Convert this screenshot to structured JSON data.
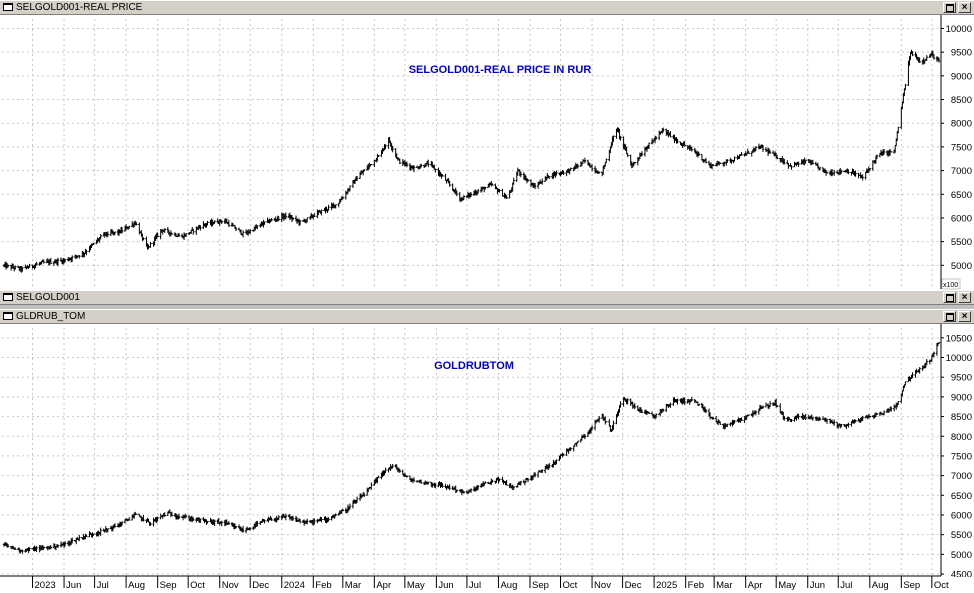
{
  "windows": [
    {
      "title": "SELGOLD001-REAL PRICE"
    },
    {
      "title": "SELGOLD001"
    },
    {
      "title": "GLDRUB_TOM"
    }
  ],
  "buttons": {
    "close": "×"
  },
  "chart_data": [
    {
      "type": "ohlc",
      "title": "SELGOLD001-REAL PRICE IN RUR",
      "title_color": "#0000cc",
      "ylim": [
        4500,
        10200
      ],
      "yticks": [
        10000,
        9500,
        9000,
        8500,
        8000,
        7500,
        7000,
        6500,
        6000,
        5500,
        5000
      ],
      "scale_label": "x100",
      "grid": true,
      "x_start": "2023-04-01",
      "x_end": "2025-10-10",
      "series_points": [
        [
          "2023-04-01",
          5000
        ],
        [
          "2023-04-20",
          4920
        ],
        [
          "2023-05-10",
          5050
        ],
        [
          "2023-06-01",
          5100
        ],
        [
          "2023-06-20",
          5250
        ],
        [
          "2023-07-10",
          5650
        ],
        [
          "2023-07-25",
          5700
        ],
        [
          "2023-08-10",
          5900
        ],
        [
          "2023-08-22",
          5350
        ],
        [
          "2023-09-05",
          5750
        ],
        [
          "2023-09-25",
          5600
        ],
        [
          "2023-10-15",
          5850
        ],
        [
          "2023-11-05",
          5950
        ],
        [
          "2023-11-25",
          5650
        ],
        [
          "2023-12-15",
          5900
        ],
        [
          "2024-01-05",
          6050
        ],
        [
          "2024-01-20",
          5900
        ],
        [
          "2024-02-05",
          6100
        ],
        [
          "2024-02-25",
          6300
        ],
        [
          "2024-03-15",
          6850
        ],
        [
          "2024-04-05",
          7300
        ],
        [
          "2024-04-15",
          7650
        ],
        [
          "2024-04-25",
          7200
        ],
        [
          "2024-05-10",
          7050
        ],
        [
          "2024-05-25",
          7150
        ],
        [
          "2024-06-10",
          6800
        ],
        [
          "2024-06-25",
          6400
        ],
        [
          "2024-07-10",
          6550
        ],
        [
          "2024-07-25",
          6700
        ],
        [
          "2024-08-10",
          6400
        ],
        [
          "2024-08-20",
          7000
        ],
        [
          "2024-09-05",
          6650
        ],
        [
          "2024-09-20",
          6900
        ],
        [
          "2024-10-10",
          7000
        ],
        [
          "2024-10-25",
          7200
        ],
        [
          "2024-11-10",
          6900
        ],
        [
          "2024-11-25",
          7900
        ],
        [
          "2024-12-10",
          7100
        ],
        [
          "2024-12-25",
          7500
        ],
        [
          "2025-01-10",
          7850
        ],
        [
          "2025-01-25",
          7600
        ],
        [
          "2025-02-10",
          7400
        ],
        [
          "2025-02-25",
          7100
        ],
        [
          "2025-03-15",
          7200
        ],
        [
          "2025-04-01",
          7350
        ],
        [
          "2025-04-15",
          7500
        ],
        [
          "2025-05-01",
          7300
        ],
        [
          "2025-05-15",
          7100
        ],
        [
          "2025-06-01",
          7200
        ],
        [
          "2025-06-20",
          6950
        ],
        [
          "2025-07-10",
          7000
        ],
        [
          "2025-07-25",
          6850
        ],
        [
          "2025-08-10",
          7350
        ],
        [
          "2025-08-25",
          7400
        ],
        [
          "2025-09-01",
          8300
        ],
        [
          "2025-09-10",
          9500
        ],
        [
          "2025-09-20",
          9300
        ],
        [
          "2025-10-01",
          9450
        ],
        [
          "2025-10-08",
          9300
        ]
      ]
    },
    {
      "type": "ohlc",
      "title": "GOLDRUBTOM",
      "title_color": "#0000cc",
      "ylim": [
        4450,
        10750
      ],
      "yticks": [
        10500,
        10000,
        9500,
        9000,
        8500,
        8000,
        7500,
        7000,
        6500,
        6000,
        5500,
        5000,
        4500
      ],
      "grid": true,
      "x_start": "2023-04-01",
      "x_end": "2025-10-10",
      "series_points": [
        [
          "2023-04-01",
          5250
        ],
        [
          "2023-04-20",
          5100
        ],
        [
          "2023-05-10",
          5150
        ],
        [
          "2023-06-01",
          5250
        ],
        [
          "2023-06-20",
          5450
        ],
        [
          "2023-07-10",
          5600
        ],
        [
          "2023-07-25",
          5750
        ],
        [
          "2023-08-10",
          6000
        ],
        [
          "2023-08-25",
          5800
        ],
        [
          "2023-09-10",
          6050
        ],
        [
          "2023-09-25",
          5950
        ],
        [
          "2023-10-15",
          5850
        ],
        [
          "2023-11-05",
          5800
        ],
        [
          "2023-11-25",
          5600
        ],
        [
          "2023-12-15",
          5850
        ],
        [
          "2024-01-05",
          5950
        ],
        [
          "2024-01-25",
          5800
        ],
        [
          "2024-02-15",
          5900
        ],
        [
          "2024-03-05",
          6150
        ],
        [
          "2024-03-25",
          6600
        ],
        [
          "2024-04-10",
          7100
        ],
        [
          "2024-04-20",
          7250
        ],
        [
          "2024-05-05",
          6900
        ],
        [
          "2024-05-25",
          6800
        ],
        [
          "2024-06-15",
          6700
        ],
        [
          "2024-06-30",
          6550
        ],
        [
          "2024-07-15",
          6750
        ],
        [
          "2024-08-01",
          6900
        ],
        [
          "2024-08-15",
          6700
        ],
        [
          "2024-09-05",
          7000
        ],
        [
          "2024-09-25",
          7350
        ],
        [
          "2024-10-15",
          7800
        ],
        [
          "2024-10-30",
          8150
        ],
        [
          "2024-11-10",
          8550
        ],
        [
          "2024-11-20",
          8150
        ],
        [
          "2024-12-01",
          9000
        ],
        [
          "2024-12-15",
          8700
        ],
        [
          "2025-01-01",
          8500
        ],
        [
          "2025-01-20",
          8900
        ],
        [
          "2025-02-10",
          8900
        ],
        [
          "2025-02-25",
          8500
        ],
        [
          "2025-03-10",
          8250
        ],
        [
          "2025-03-30",
          8450
        ],
        [
          "2025-04-15",
          8700
        ],
        [
          "2025-04-30",
          8850
        ],
        [
          "2025-05-10",
          8400
        ],
        [
          "2025-05-25",
          8500
        ],
        [
          "2025-06-15",
          8450
        ],
        [
          "2025-07-05",
          8250
        ],
        [
          "2025-07-25",
          8450
        ],
        [
          "2025-08-15",
          8600
        ],
        [
          "2025-08-28",
          8800
        ],
        [
          "2025-09-05",
          9400
        ],
        [
          "2025-09-20",
          9700
        ],
        [
          "2025-10-01",
          10000
        ],
        [
          "2025-10-08",
          10400
        ]
      ]
    }
  ],
  "x_axis": {
    "tick_labels": [
      "2023",
      "Jun",
      "Jul",
      "Aug",
      "Sep",
      "Oct",
      "Nov",
      "Dec",
      "2024",
      "Feb",
      "Mar",
      "Apr",
      "May",
      "Jun",
      "Jul",
      "Aug",
      "Sep",
      "Oct",
      "Nov",
      "Dec",
      "2025",
      "Feb",
      "Mar",
      "Apr",
      "May",
      "Jun",
      "Jul",
      "Aug",
      "Sep",
      "Oct"
    ],
    "tick_dates": [
      "2023-05-01",
      "2023-06-01",
      "2023-07-01",
      "2023-08-01",
      "2023-09-01",
      "2023-10-01",
      "2023-11-01",
      "2023-12-01",
      "2024-01-01",
      "2024-02-01",
      "2024-03-01",
      "2024-04-01",
      "2024-05-01",
      "2024-06-01",
      "2024-07-01",
      "2024-08-01",
      "2024-09-01",
      "2024-10-01",
      "2024-11-01",
      "2024-12-01",
      "2025-01-01",
      "2025-02-01",
      "2025-03-01",
      "2025-04-01",
      "2025-05-01",
      "2025-06-01",
      "2025-07-01",
      "2025-08-01",
      "2025-09-01",
      "2025-10-01"
    ]
  },
  "colors": {
    "background": "#ffffff",
    "frame": "#d4d0c8",
    "bars": "#000000",
    "grid": "#c8c8c8",
    "title": "#0000cc"
  }
}
